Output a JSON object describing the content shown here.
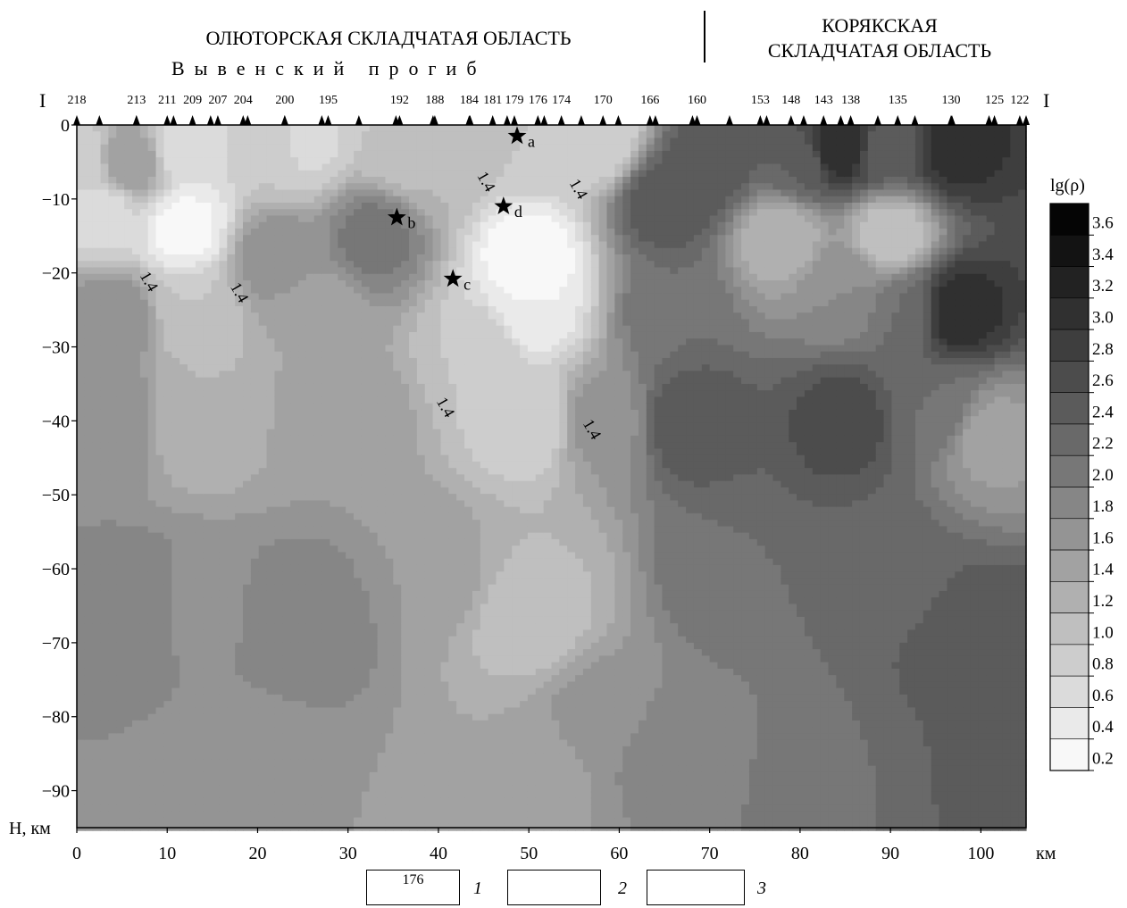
{
  "header": {
    "left_region": "ОЛЮТОРСКАЯ СКЛАДЧАТАЯ ОБЛАСТЬ",
    "left_subregion": "Вывенский прогиб",
    "right_region_line1": "КОРЯКСКАЯ",
    "right_region_line2": "СКЛАДЧАТАЯ ОБЛАСТЬ",
    "profile_start": "I",
    "profile_end": "I"
  },
  "chart_data": {
    "type": "heatmap",
    "title": "",
    "xlabel": "км",
    "ylabel": "H, км",
    "xlim": [
      0,
      105
    ],
    "ylim": [
      -95,
      0
    ],
    "x_ticks": [
      0,
      10,
      20,
      30,
      40,
      50,
      60,
      70,
      80,
      90,
      100
    ],
    "y_ticks": [
      0,
      -10,
      -20,
      -30,
      -40,
      -50,
      -60,
      -70,
      -80,
      -90
    ],
    "stations": [
      {
        "label": "218",
        "x": 0
      },
      {
        "label": "213",
        "x": 6.6
      },
      {
        "label": "211",
        "x": 10.0
      },
      {
        "label": "209",
        "x": 12.8
      },
      {
        "label": "207",
        "x": 15.6
      },
      {
        "label": "204",
        "x": 18.4
      },
      {
        "label": "200",
        "x": 23.0
      },
      {
        "label": "195",
        "x": 27.8
      },
      {
        "label": "192",
        "x": 35.7
      },
      {
        "label": "188",
        "x": 39.6
      },
      {
        "label": "184",
        "x": 43.4
      },
      {
        "label": "181",
        "x": 46.0
      },
      {
        "label": "179",
        "x": 48.4
      },
      {
        "label": "176",
        "x": 51.0
      },
      {
        "label": "174",
        "x": 53.6
      },
      {
        "label": "170",
        "x": 58.2
      },
      {
        "label": "166",
        "x": 63.4
      },
      {
        "label": "160",
        "x": 68.6
      },
      {
        "label": "153",
        "x": 75.6
      },
      {
        "label": "148",
        "x": 79.0
      },
      {
        "label": "143",
        "x": 82.6
      },
      {
        "label": "138",
        "x": 85.6
      },
      {
        "label": "135",
        "x": 90.8
      },
      {
        "label": "130",
        "x": 96.7
      },
      {
        "label": "125",
        "x": 101.5
      },
      {
        "label": "122",
        "x": 104.3
      }
    ],
    "stars": [
      {
        "label": "a",
        "x": 48.7,
        "y": -1.5
      },
      {
        "label": "b",
        "x": 35.4,
        "y": -12.5
      },
      {
        "label": "c",
        "x": 41.6,
        "y": -20.8
      },
      {
        "label": "d",
        "x": 47.2,
        "y": -11.0
      }
    ],
    "contour_labels": [
      {
        "text": "1.4",
        "x": 7.5,
        "y": -21.5
      },
      {
        "text": "1.4",
        "x": 17.5,
        "y": -23.0
      },
      {
        "text": "1.4",
        "x": 44.8,
        "y": -8.0
      },
      {
        "text": "1.4",
        "x": 55.0,
        "y": -9.0
      },
      {
        "text": "1.4",
        "x": 40.3,
        "y": -38.5
      },
      {
        "text": "1.4",
        "x": 56.5,
        "y": -41.5
      }
    ],
    "colorbar": {
      "label": "lg(ρ)",
      "levels": [
        0.2,
        0.4,
        0.6,
        0.8,
        1.0,
        1.2,
        1.4,
        1.6,
        1.8,
        2.0,
        2.2,
        2.4,
        2.6,
        2.8,
        3.0,
        3.2,
        3.4,
        3.6
      ],
      "tick_labels": [
        "0.2",
        "0.4",
        "0.6",
        "0.8",
        "1.0",
        "1.2",
        "1.4",
        "1.6",
        "1.8",
        "2.0",
        "2.2",
        "2.4",
        "2.6",
        "2.8",
        "3.0",
        "3.2",
        "3.4",
        "3.6"
      ]
    },
    "field_anchors": [
      {
        "x": 0,
        "y": -5,
        "v": 0.8
      },
      {
        "x": 3,
        "y": -12,
        "v": 0.7
      },
      {
        "x": 6,
        "y": -5,
        "v": 1.6
      },
      {
        "x": 12,
        "y": -3,
        "v": 0.6
      },
      {
        "x": 12,
        "y": -14,
        "v": 0.3
      },
      {
        "x": 13,
        "y": -25,
        "v": 1.0
      },
      {
        "x": 13,
        "y": -40,
        "v": 1.2
      },
      {
        "x": 4,
        "y": -26,
        "v": 1.8
      },
      {
        "x": 4,
        "y": -40,
        "v": 1.8
      },
      {
        "x": 7,
        "y": -65,
        "v": 2.0
      },
      {
        "x": 25,
        "y": -67,
        "v": 2.0
      },
      {
        "x": 13,
        "y": -65,
        "v": 1.7
      },
      {
        "x": 22,
        "y": -3,
        "v": 1.0
      },
      {
        "x": 25,
        "y": -2,
        "v": 0.7
      },
      {
        "x": 22,
        "y": -18,
        "v": 1.8
      },
      {
        "x": 26,
        "y": -26,
        "v": 1.4
      },
      {
        "x": 33,
        "y": -15,
        "v": 2.1
      },
      {
        "x": 36,
        "y": -3,
        "v": 1.0
      },
      {
        "x": 40,
        "y": -5,
        "v": 1.2
      },
      {
        "x": 30,
        "y": -40,
        "v": 1.6
      },
      {
        "x": 40,
        "y": -60,
        "v": 1.6
      },
      {
        "x": 20,
        "y": -88,
        "v": 1.6
      },
      {
        "x": 50,
        "y": -18,
        "v": 0.2
      },
      {
        "x": 50,
        "y": -25,
        "v": 0.4
      },
      {
        "x": 50,
        "y": -40,
        "v": 0.8
      },
      {
        "x": 50,
        "y": -60,
        "v": 1.2
      },
      {
        "x": 50,
        "y": -66,
        "v": 1.0
      },
      {
        "x": 45,
        "y": -30,
        "v": 1.0
      },
      {
        "x": 50,
        "y": -2,
        "v": 1.0
      },
      {
        "x": 58,
        "y": -2,
        "v": 0.8
      },
      {
        "x": 58,
        "y": -40,
        "v": 1.7
      },
      {
        "x": 58,
        "y": -80,
        "v": 1.7
      },
      {
        "x": 50,
        "y": -88,
        "v": 1.4
      },
      {
        "x": 65,
        "y": -10,
        "v": 2.6
      },
      {
        "x": 70,
        "y": -5,
        "v": 2.6
      },
      {
        "x": 66,
        "y": -25,
        "v": 2.2
      },
      {
        "x": 68,
        "y": -40,
        "v": 2.6
      },
      {
        "x": 72,
        "y": -60,
        "v": 2.2
      },
      {
        "x": 65,
        "y": -85,
        "v": 1.9
      },
      {
        "x": 78,
        "y": -15,
        "v": 1.2
      },
      {
        "x": 80,
        "y": -5,
        "v": 2.4
      },
      {
        "x": 84,
        "y": -3,
        "v": 3.2
      },
      {
        "x": 85,
        "y": -22,
        "v": 1.8
      },
      {
        "x": 85,
        "y": -40,
        "v": 2.7
      },
      {
        "x": 90,
        "y": -15,
        "v": 1.0
      },
      {
        "x": 90,
        "y": -3,
        "v": 2.5
      },
      {
        "x": 97,
        "y": -3,
        "v": 3.1
      },
      {
        "x": 97,
        "y": -25,
        "v": 3.2
      },
      {
        "x": 92,
        "y": -25,
        "v": 2.2
      },
      {
        "x": 101,
        "y": -42,
        "v": 1.5
      },
      {
        "x": 95,
        "y": -38,
        "v": 2.2
      },
      {
        "x": 90,
        "y": -60,
        "v": 2.3
      },
      {
        "x": 100,
        "y": -70,
        "v": 2.6
      },
      {
        "x": 104,
        "y": -88,
        "v": 2.6
      },
      {
        "x": 85,
        "y": -90,
        "v": 2.2
      },
      {
        "x": 75,
        "y": -90,
        "v": 2.0
      }
    ]
  },
  "legend": {
    "items": [
      {
        "number": "1",
        "symbol_text": "176"
      },
      {
        "number": "2",
        "symbol_text": ""
      },
      {
        "number": "3",
        "symbol_text": ""
      }
    ]
  }
}
